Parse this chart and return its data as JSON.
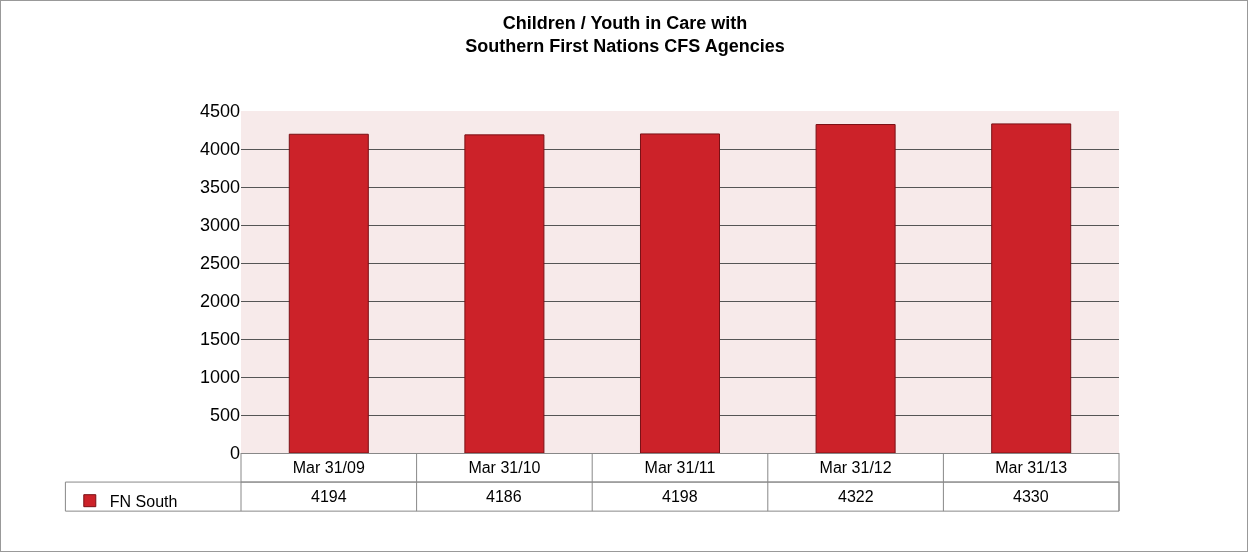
{
  "chart_data": {
    "type": "bar",
    "title": "Children / Youth in Care with\nSouthern First Nations CFS Agencies",
    "categories": [
      "Mar 31/09",
      "Mar 31/10",
      "Mar 31/11",
      "Mar 31/12",
      "Mar 31/13"
    ],
    "series": [
      {
        "name": "FN South",
        "color": "#cc2229",
        "values": [
          4194,
          4186,
          4198,
          4322,
          4330
        ]
      }
    ],
    "ylim": [
      0,
      4500
    ],
    "yticks": [
      0,
      500,
      1000,
      1500,
      2000,
      2500,
      3000,
      3500,
      4000,
      4500
    ],
    "grid": "y",
    "legend": "bottom left",
    "data_labels": true
  }
}
